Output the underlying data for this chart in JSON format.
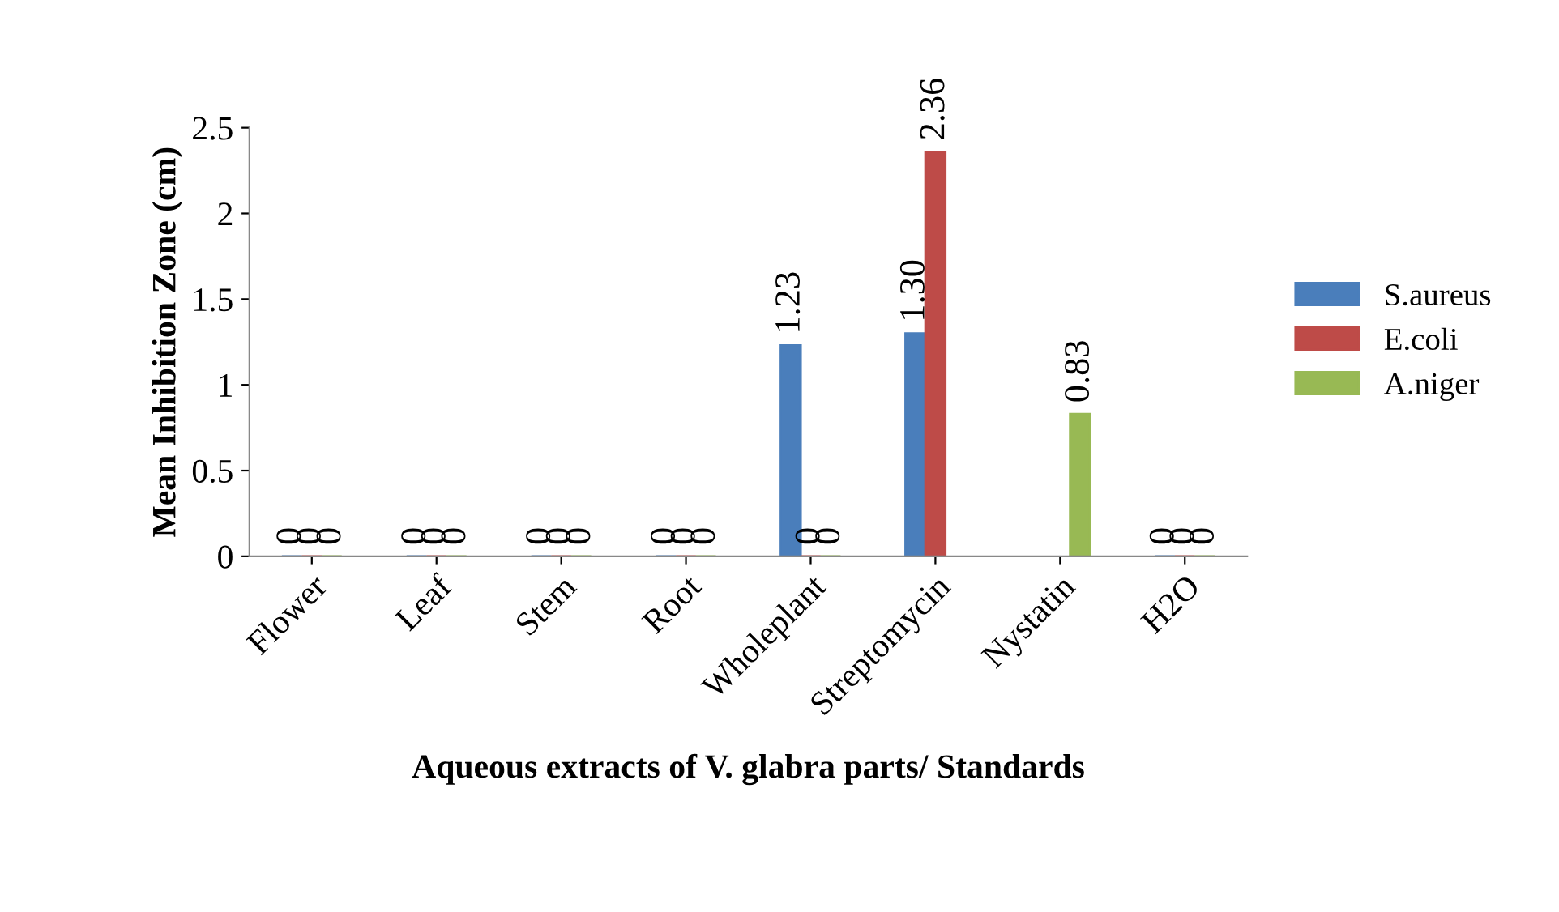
{
  "chart_data": {
    "type": "bar",
    "xlabel": "Aqueous extracts of V. glabra parts/ Standards",
    "ylabel": "Mean Inhibition Zone (cm)",
    "categories": [
      "Flower",
      "Leaf",
      "Stem",
      "Root",
      "Wholeplant",
      "Streptomycin",
      "Nystatin",
      "H2O"
    ],
    "series": [
      {
        "name": "S.aureus",
        "color": "#4a7ebb",
        "values": [
          0,
          0,
          0,
          0,
          1.23,
          1.3,
          null,
          0
        ],
        "value_labels": [
          "0",
          "0",
          "0",
          "0",
          "1.23",
          "1.30",
          null,
          "0"
        ]
      },
      {
        "name": "E.coli",
        "color": "#be4b48",
        "values": [
          0,
          0,
          0,
          0,
          0,
          2.36,
          null,
          0
        ],
        "value_labels": [
          "0",
          "0",
          "0",
          "0",
          "0",
          "2.36",
          null,
          "0"
        ]
      },
      {
        "name": "A.niger",
        "color": "#98b954",
        "values": [
          0,
          0,
          0,
          0,
          0,
          null,
          0.83,
          0
        ],
        "value_labels": [
          "0",
          "0",
          "0",
          "0",
          "0",
          null,
          "0.83",
          "0"
        ]
      }
    ],
    "ylim": [
      0,
      2.5
    ],
    "yticks": [
      0,
      0.5,
      1,
      1.5,
      2,
      2.5
    ],
    "grid": false,
    "legend": "right"
  }
}
